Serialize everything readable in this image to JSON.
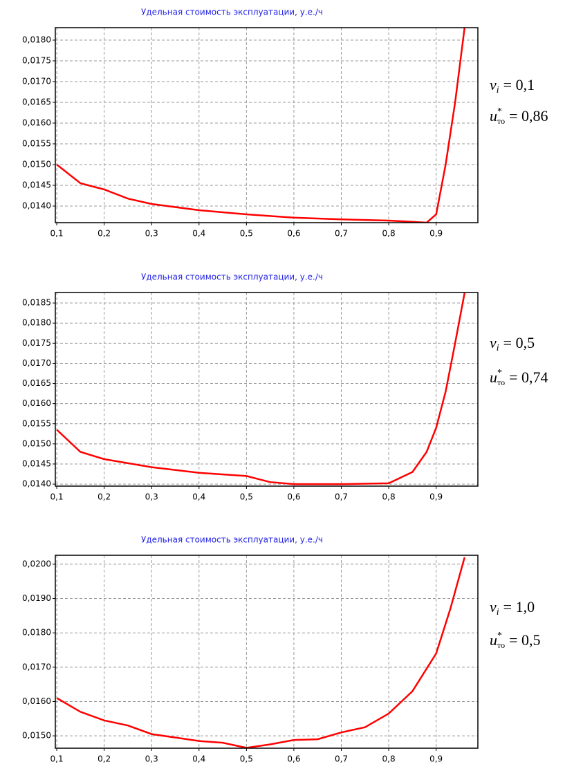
{
  "chart_data": [
    {
      "type": "line",
      "title": "Удельная стоимость эксплуатации, у.е./ч",
      "x": [
        0.1,
        0.15,
        0.2,
        0.25,
        0.3,
        0.4,
        0.5,
        0.6,
        0.7,
        0.8,
        0.85,
        0.88,
        0.9,
        0.92,
        0.94,
        0.96
      ],
      "series": [
        {
          "color": "#ff0000",
          "values": [
            0.015,
            0.01455,
            0.0144,
            0.01418,
            0.01405,
            0.0139,
            0.0138,
            0.01372,
            0.01368,
            0.01365,
            0.01362,
            0.0136,
            0.0138,
            0.015,
            0.0165,
            0.0183
          ]
        }
      ],
      "xlim": [
        0.097,
        0.988
      ],
      "ylim": [
        0.0136,
        0.0183
      ],
      "xticks": [
        {
          "value": 0.1,
          "label": "0,1"
        },
        {
          "value": 0.2,
          "label": "0,2"
        },
        {
          "value": 0.3,
          "label": "0,3"
        },
        {
          "value": 0.4,
          "label": "0,4"
        },
        {
          "value": 0.5,
          "label": "0,5"
        },
        {
          "value": 0.6,
          "label": "0,6"
        },
        {
          "value": 0.7,
          "label": "0,7"
        },
        {
          "value": 0.8,
          "label": "0,8"
        },
        {
          "value": 0.9,
          "label": "0,9"
        }
      ],
      "yticks": [
        {
          "value": 0.014,
          "label": "0,0140"
        },
        {
          "value": 0.0145,
          "label": "0,0145"
        },
        {
          "value": 0.015,
          "label": "0,0150"
        },
        {
          "value": 0.0155,
          "label": "0,0155"
        },
        {
          "value": 0.016,
          "label": "0,0160"
        },
        {
          "value": 0.0165,
          "label": "0,0165"
        },
        {
          "value": 0.017,
          "label": "0,0170"
        },
        {
          "value": 0.0175,
          "label": "0,0175"
        },
        {
          "value": 0.018,
          "label": "0,0180"
        }
      ],
      "grid": true,
      "annotations": {
        "nu": {
          "symbol": "ν",
          "sub": "i",
          "text": "= 0,1"
        },
        "u": {
          "symbol": "u",
          "sup": "*",
          "sub": "то",
          "text": "= 0,86"
        }
      }
    },
    {
      "type": "line",
      "title": "Удельная стоимость эксплуатации, у.е./ч",
      "x": [
        0.1,
        0.15,
        0.2,
        0.3,
        0.4,
        0.5,
        0.55,
        0.6,
        0.7,
        0.8,
        0.85,
        0.88,
        0.9,
        0.92,
        0.94,
        0.96
      ],
      "series": [
        {
          "color": "#ff0000",
          "values": [
            0.01535,
            0.0148,
            0.01462,
            0.01442,
            0.01428,
            0.0142,
            0.01405,
            0.014,
            0.014,
            0.01402,
            0.0143,
            0.0148,
            0.0154,
            0.0163,
            0.0175,
            0.01875
          ]
        }
      ],
      "xlim": [
        0.097,
        0.988
      ],
      "ylim": [
        0.01395,
        0.01876
      ],
      "xticks": [
        {
          "value": 0.1,
          "label": "0,1"
        },
        {
          "value": 0.2,
          "label": "0,2"
        },
        {
          "value": 0.3,
          "label": "0,3"
        },
        {
          "value": 0.4,
          "label": "0,4"
        },
        {
          "value": 0.5,
          "label": "0,5"
        },
        {
          "value": 0.6,
          "label": "0,6"
        },
        {
          "value": 0.7,
          "label": "0,7"
        },
        {
          "value": 0.8,
          "label": "0,8"
        },
        {
          "value": 0.9,
          "label": "0,9"
        }
      ],
      "yticks": [
        {
          "value": 0.014,
          "label": "0,0140"
        },
        {
          "value": 0.0145,
          "label": "0,0145"
        },
        {
          "value": 0.015,
          "label": "0,0150"
        },
        {
          "value": 0.0155,
          "label": "0,0155"
        },
        {
          "value": 0.016,
          "label": "0,0160"
        },
        {
          "value": 0.0165,
          "label": "0,0165"
        },
        {
          "value": 0.017,
          "label": "0,0170"
        },
        {
          "value": 0.0175,
          "label": "0,0175"
        },
        {
          "value": 0.018,
          "label": "0,0180"
        },
        {
          "value": 0.0185,
          "label": "0,0185"
        }
      ],
      "grid": true,
      "annotations": {
        "nu": {
          "symbol": "ν",
          "sub": "i",
          "text": "= 0,5"
        },
        "u": {
          "symbol": "u",
          "sup": "*",
          "sub": "то",
          "text": "= 0,74"
        }
      }
    },
    {
      "type": "line",
      "title": "Удельная стоимость эксплуатации, у.е./ч",
      "x": [
        0.1,
        0.15,
        0.2,
        0.25,
        0.3,
        0.4,
        0.45,
        0.5,
        0.55,
        0.6,
        0.65,
        0.7,
        0.75,
        0.8,
        0.85,
        0.9,
        0.93,
        0.96
      ],
      "series": [
        {
          "color": "#ff0000",
          "values": [
            0.0161,
            0.0157,
            0.01545,
            0.0153,
            0.01505,
            0.01485,
            0.0148,
            0.01465,
            0.01475,
            0.01488,
            0.0149,
            0.0151,
            0.01525,
            0.01565,
            0.0163,
            0.0174,
            0.0187,
            0.0202
          ]
        }
      ],
      "xlim": [
        0.097,
        0.988
      ],
      "ylim": [
        0.01464,
        0.02026
      ],
      "xticks": [
        {
          "value": 0.1,
          "label": "0,1"
        },
        {
          "value": 0.2,
          "label": "0,2"
        },
        {
          "value": 0.3,
          "label": "0,3"
        },
        {
          "value": 0.4,
          "label": "0,4"
        },
        {
          "value": 0.5,
          "label": "0,5"
        },
        {
          "value": 0.6,
          "label": "0,6"
        },
        {
          "value": 0.7,
          "label": "0,7"
        },
        {
          "value": 0.8,
          "label": "0,8"
        },
        {
          "value": 0.9,
          "label": "0,9"
        }
      ],
      "yticks": [
        {
          "value": 0.015,
          "label": "0,0150"
        },
        {
          "value": 0.016,
          "label": "0,0160"
        },
        {
          "value": 0.017,
          "label": "0,0170"
        },
        {
          "value": 0.018,
          "label": "0,0180"
        },
        {
          "value": 0.019,
          "label": "0,0190"
        },
        {
          "value": 0.02,
          "label": "0,0200"
        }
      ],
      "grid": true,
      "annotations": {
        "nu": {
          "symbol": "ν",
          "sub": "i",
          "text": "= 1,0"
        },
        "u": {
          "symbol": "u",
          "sup": "*",
          "sub": "то",
          "text": "= 0,5"
        }
      }
    }
  ]
}
